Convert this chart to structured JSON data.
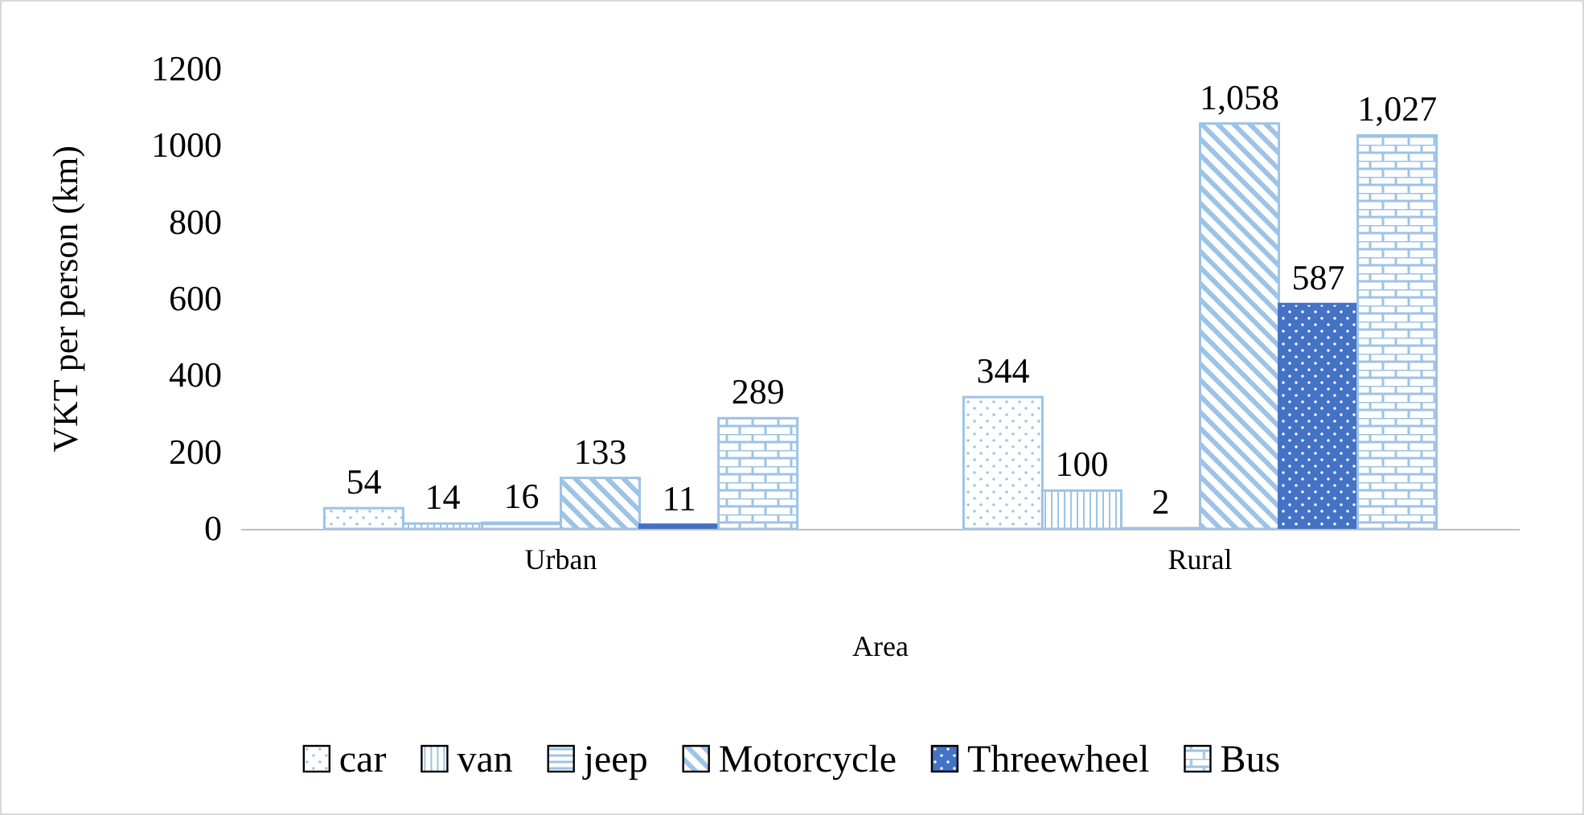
{
  "chart_data": {
    "type": "bar",
    "xlabel": "Area",
    "ylabel": "VKT per person (km)",
    "categories": [
      "Urban",
      "Rural"
    ],
    "series": [
      {
        "name": "car",
        "color": "#9dc3e6",
        "values": [
          54,
          344
        ],
        "value_labels": [
          "54",
          "344"
        ]
      },
      {
        "name": "van",
        "color": "#9dc3e6",
        "values": [
          14,
          100
        ],
        "value_labels": [
          "14",
          "100"
        ]
      },
      {
        "name": "jeep",
        "color": "#9dc3e6",
        "values": [
          16,
          2
        ],
        "value_labels": [
          "16",
          "2"
        ]
      },
      {
        "name": "Motorcycle",
        "color": "#9dc3e6",
        "values": [
          133,
          1058
        ],
        "value_labels": [
          "133",
          "1,058"
        ]
      },
      {
        "name": "Threewheel",
        "color": "#4472c4",
        "values": [
          11,
          587
        ],
        "value_labels": [
          "11",
          "587"
        ]
      },
      {
        "name": "Bus",
        "color": "#9dc3e6",
        "values": [
          289,
          1027
        ],
        "value_labels": [
          "289",
          "1,027"
        ]
      }
    ],
    "ylim": [
      0,
      1200
    ],
    "yticks": [
      0,
      200,
      400,
      600,
      800,
      1000,
      1200
    ],
    "grid": false,
    "legend": "bottom"
  }
}
